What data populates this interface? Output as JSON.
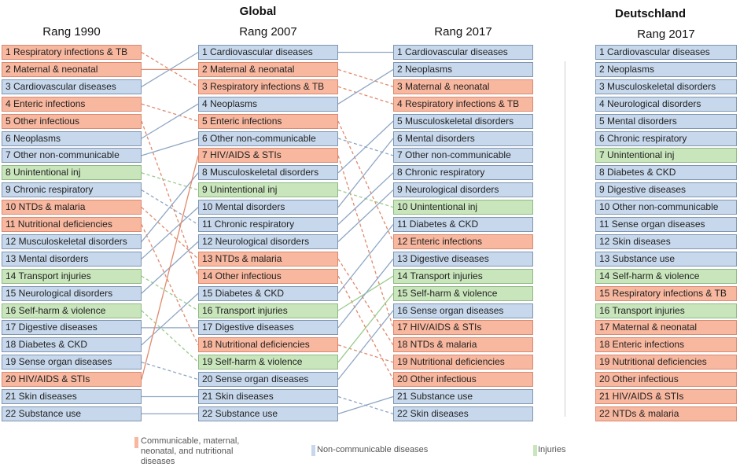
{
  "titles": {
    "global": "Global",
    "germany": "Deutschland",
    "col1990": "Rang 1990",
    "col2007": "Rang 2007",
    "col2017": "Rang 2017",
    "colDE2017": "Rang 2017"
  },
  "colors": {
    "communicable": "#f8b79f",
    "noncommunicable": "#c7d8ec",
    "injuries": "#c9e5bc",
    "line_communicable": "#e08a6c",
    "line_noncommunicable": "#8ea6c4",
    "line_injuries": "#9ccc8d"
  },
  "legend": {
    "communicable": "Communicable, maternal, neonatal, and nutritional diseases",
    "noncommunicable": "Non-communicable diseases",
    "injuries": "Injuries"
  },
  "rank1990": [
    {
      "label": "1 Respiratory infections & TB",
      "cat": "c"
    },
    {
      "label": "2 Maternal & neonatal",
      "cat": "c"
    },
    {
      "label": "3 Cardiovascular diseases",
      "cat": "n"
    },
    {
      "label": "4 Enteric infections",
      "cat": "c"
    },
    {
      "label": "5 Other infectious",
      "cat": "c"
    },
    {
      "label": "6 Neoplasms",
      "cat": "n"
    },
    {
      "label": "7 Other non-communicable",
      "cat": "n"
    },
    {
      "label": "8 Unintentional inj",
      "cat": "i"
    },
    {
      "label": "9 Chronic respiratory",
      "cat": "n"
    },
    {
      "label": "10 NTDs & malaria",
      "cat": "c"
    },
    {
      "label": "11 Nutritional deficiencies",
      "cat": "c"
    },
    {
      "label": "12 Musculoskeletal disorders",
      "cat": "n"
    },
    {
      "label": "13 Mental disorders",
      "cat": "n"
    },
    {
      "label": "14 Transport injuries",
      "cat": "i"
    },
    {
      "label": "15 Neurological disorders",
      "cat": "n"
    },
    {
      "label": "16 Self-harm & violence",
      "cat": "i"
    },
    {
      "label": "17 Digestive diseases",
      "cat": "n"
    },
    {
      "label": "18 Diabetes & CKD",
      "cat": "n"
    },
    {
      "label": "19 Sense organ diseases",
      "cat": "n"
    },
    {
      "label": "20 HIV/AIDS & STIs",
      "cat": "c"
    },
    {
      "label": "21 Skin diseases",
      "cat": "n"
    },
    {
      "label": "22 Substance use",
      "cat": "n"
    }
  ],
  "rank2007": [
    {
      "label": "1 Cardiovascular diseases",
      "cat": "n"
    },
    {
      "label": "2 Maternal & neonatal",
      "cat": "c"
    },
    {
      "label": "3 Respiratory infections & TB",
      "cat": "c"
    },
    {
      "label": "4 Neoplasms",
      "cat": "n"
    },
    {
      "label": "5 Enteric infections",
      "cat": "c"
    },
    {
      "label": "6 Other non-communicable",
      "cat": "n"
    },
    {
      "label": "7 HIV/AIDS & STIs",
      "cat": "c"
    },
    {
      "label": "8 Musculoskeletal disorders",
      "cat": "n"
    },
    {
      "label": "9 Unintentional inj",
      "cat": "i"
    },
    {
      "label": "10 Mental disorders",
      "cat": "n"
    },
    {
      "label": "11 Chronic respiratory",
      "cat": "n"
    },
    {
      "label": "12 Neurological disorders",
      "cat": "n"
    },
    {
      "label": "13 NTDs & malaria",
      "cat": "c"
    },
    {
      "label": "14 Other infectious",
      "cat": "c"
    },
    {
      "label": "15 Diabetes & CKD",
      "cat": "n"
    },
    {
      "label": "16 Transport injuries",
      "cat": "i"
    },
    {
      "label": "17 Digestive diseases",
      "cat": "n"
    },
    {
      "label": "18 Nutritional deficiencies",
      "cat": "c"
    },
    {
      "label": "19 Self-harm & violence",
      "cat": "i"
    },
    {
      "label": "20 Sense organ diseases",
      "cat": "n"
    },
    {
      "label": "21 Skin diseases",
      "cat": "n"
    },
    {
      "label": "22 Substance use",
      "cat": "n"
    }
  ],
  "rank2017": [
    {
      "label": "1 Cardiovascular diseases",
      "cat": "n"
    },
    {
      "label": "2 Neoplasms",
      "cat": "n"
    },
    {
      "label": "3 Maternal & neonatal",
      "cat": "c"
    },
    {
      "label": "4 Respiratory infections & TB",
      "cat": "c"
    },
    {
      "label": "5 Musculoskeletal disorders",
      "cat": "n"
    },
    {
      "label": "6 Mental disorders",
      "cat": "n"
    },
    {
      "label": "7 Other non-communicable",
      "cat": "n"
    },
    {
      "label": "8 Chronic respiratory",
      "cat": "n"
    },
    {
      "label": "9 Neurological disorders",
      "cat": "n"
    },
    {
      "label": "10 Unintentional inj",
      "cat": "i"
    },
    {
      "label": "11 Diabetes & CKD",
      "cat": "n"
    },
    {
      "label": "12 Enteric infections",
      "cat": "c"
    },
    {
      "label": "13 Digestive diseases",
      "cat": "n"
    },
    {
      "label": "14 Transport injuries",
      "cat": "i"
    },
    {
      "label": "15 Self-harm & violence",
      "cat": "i"
    },
    {
      "label": "16 Sense organ diseases",
      "cat": "n"
    },
    {
      "label": "17 HIV/AIDS & STIs",
      "cat": "c"
    },
    {
      "label": "18 NTDs & malaria",
      "cat": "c"
    },
    {
      "label": "19 Nutritional deficiencies",
      "cat": "c"
    },
    {
      "label": "20 Other infectious",
      "cat": "c"
    },
    {
      "label": "21 Substance use",
      "cat": "n"
    },
    {
      "label": "22 Skin diseases",
      "cat": "n"
    }
  ],
  "germany2017": [
    {
      "label": "1 Cardiovascular diseases",
      "cat": "n"
    },
    {
      "label": "2 Neoplasms",
      "cat": "n"
    },
    {
      "label": "3 Musculoskeletal disorders",
      "cat": "n"
    },
    {
      "label": "4 Neurological disorders",
      "cat": "n"
    },
    {
      "label": "5 Mental disorders",
      "cat": "n"
    },
    {
      "label": "6 Chronic respiratory",
      "cat": "n"
    },
    {
      "label": "7 Unintentional inj",
      "cat": "i"
    },
    {
      "label": "8 Diabetes & CKD",
      "cat": "n"
    },
    {
      "label": "9 Digestive diseases",
      "cat": "n"
    },
    {
      "label": "10 Other non-communicable",
      "cat": "n"
    },
    {
      "label": "11 Sense organ diseases",
      "cat": "n"
    },
    {
      "label": "12 Skin diseases",
      "cat": "n"
    },
    {
      "label": "13 Substance use",
      "cat": "n"
    },
    {
      "label": "14 Self-harm & violence",
      "cat": "i"
    },
    {
      "label": "15 Respiratory infections & TB",
      "cat": "c"
    },
    {
      "label": "16 Transport injuries",
      "cat": "i"
    },
    {
      "label": "17 Maternal & neonatal",
      "cat": "c"
    },
    {
      "label": "18 Enteric infections",
      "cat": "c"
    },
    {
      "label": "19 Nutritional deficiencies",
      "cat": "c"
    },
    {
      "label": "20 Other infectious",
      "cat": "c"
    },
    {
      "label": "21 HIV/AIDS & STIs",
      "cat": "c"
    },
    {
      "label": "22 NTDs & malaria",
      "cat": "c"
    }
  ]
}
